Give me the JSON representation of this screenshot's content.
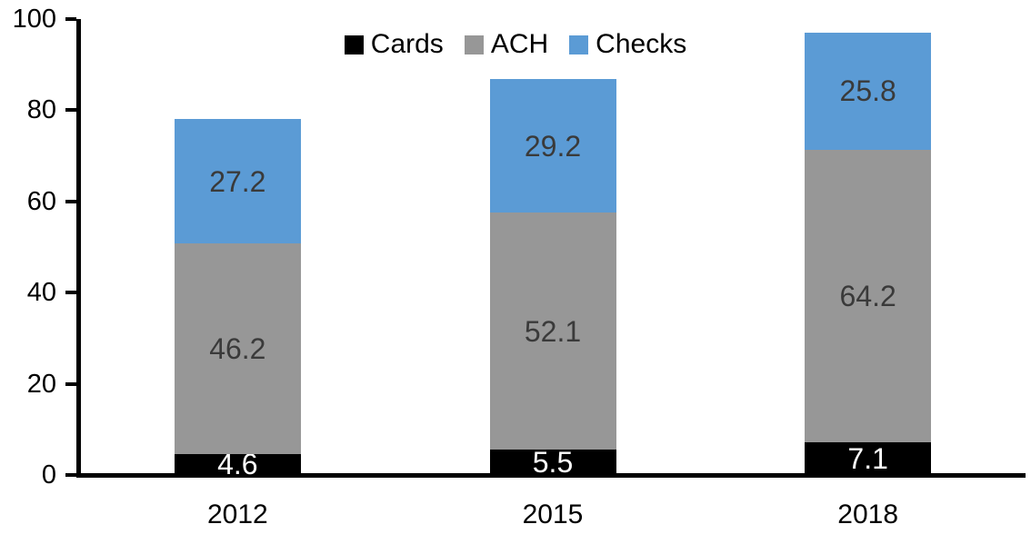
{
  "chart_data": {
    "type": "bar",
    "stacked": true,
    "title": "",
    "xlabel": "",
    "ylabel": "",
    "categories": [
      "2012",
      "2015",
      "2018"
    ],
    "series": [
      {
        "name": "Cards",
        "color": "#000000",
        "label_color": "#ffffff",
        "values": [
          4.6,
          5.5,
          7.1
        ]
      },
      {
        "name": "ACH",
        "color": "#979797",
        "label_color": "#3a3a3a",
        "values": [
          46.2,
          52.1,
          64.2
        ]
      },
      {
        "name": "Checks",
        "color": "#5b9bd5",
        "label_color": "#3a3a3a",
        "values": [
          27.2,
          29.2,
          25.8
        ]
      }
    ],
    "totals": [
      78.0,
      86.8,
      97.1
    ],
    "ylim": [
      0,
      100
    ],
    "yticks": [
      0,
      20,
      40,
      60,
      80,
      100
    ],
    "grid": false,
    "legend_position": "top-center",
    "axis_color": "#000000",
    "background_color": "#ffffff"
  }
}
